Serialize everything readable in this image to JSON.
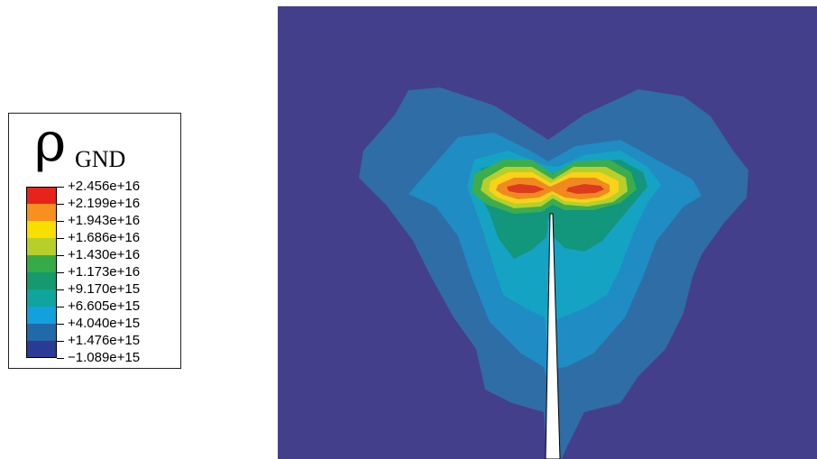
{
  "legend": {
    "symbol": "ρ",
    "subscript": "GND",
    "values": [
      "+2.456e+16",
      "+2.199e+16",
      "+1.943e+16",
      "+1.686e+16",
      "+1.430e+16",
      "+1.173e+16",
      "+9.170e+15",
      "+6.605e+15",
      "+4.040e+15",
      "+1.476e+15",
      "−1.089e+15"
    ],
    "colors": [
      "#e8231c",
      "#f7901e",
      "#f9df00",
      "#b7cf2b",
      "#36aa47",
      "#149a6c",
      "#0fa59d",
      "#13a1dd",
      "#2169a8",
      "#2b3a94"
    ]
  },
  "contour": {
    "background_color": "#443f8a",
    "level_colors": {
      "level_1": "#2f6da6",
      "level_2": "#1f8cc4",
      "level_3": "#15a3c4",
      "level_4": "#12967c",
      "level_5": "#3cad4d",
      "level_6": "#b7cf2b",
      "level_7": "#f9d21a",
      "level_8": "#f08a20",
      "level_9": "#dd3b1e"
    },
    "crack_color": "#ffffff"
  }
}
